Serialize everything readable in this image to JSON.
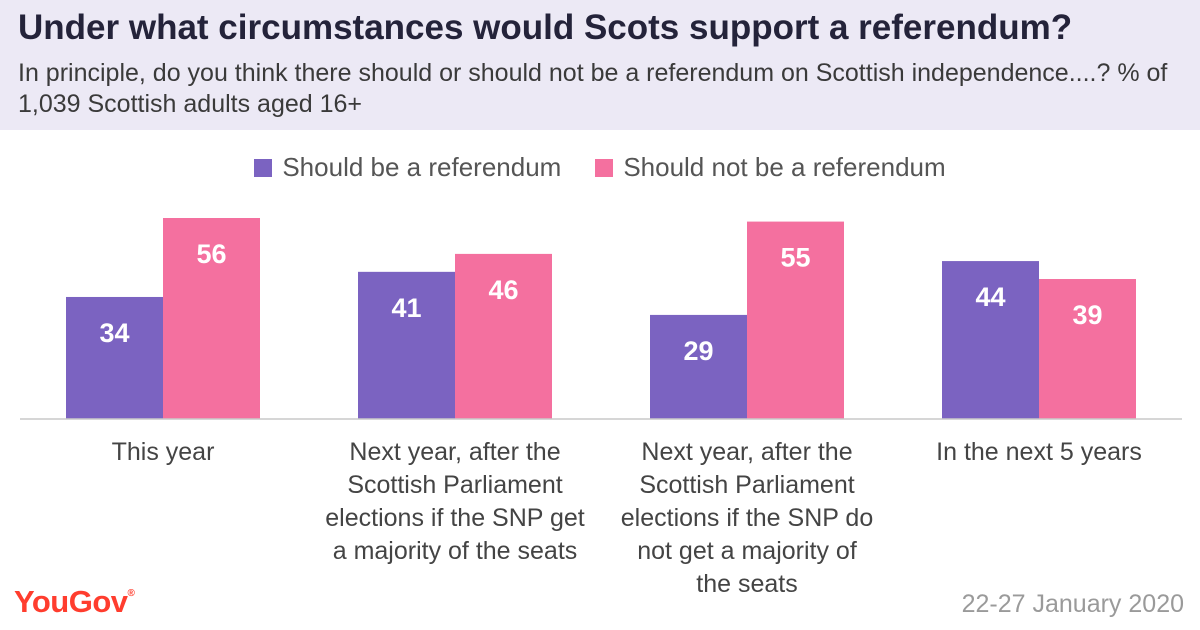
{
  "header": {
    "title": "Under what circumstances would Scots support a referendum?",
    "subtitle": "In principle, do you think there should or should not be a referendum on Scottish independence....? % of 1,039 Scottish adults aged 16+"
  },
  "chart_data": {
    "type": "bar",
    "title": "Under what circumstances would Scots support a referendum?",
    "categories": [
      "This year",
      "Next year, after the Scottish Parliament elections if the SNP get a majority of the seats",
      "Next year, after the Scottish Parliament elections if the SNP do not get a majority of the seats",
      "In the next 5 years"
    ],
    "series": [
      {
        "name": "Should be a referendum",
        "color": "#7b63c1",
        "values": [
          34,
          41,
          29,
          44
        ]
      },
      {
        "name": "Should not be a referendum",
        "color": "#f4709f",
        "values": [
          56,
          46,
          55,
          39
        ]
      }
    ],
    "xlabel": "",
    "ylabel": "",
    "ylim": [
      0,
      56
    ],
    "grid": false,
    "legend": "top-center"
  },
  "footer": {
    "brand": "YouGov",
    "date": "22-27 January 2020"
  }
}
